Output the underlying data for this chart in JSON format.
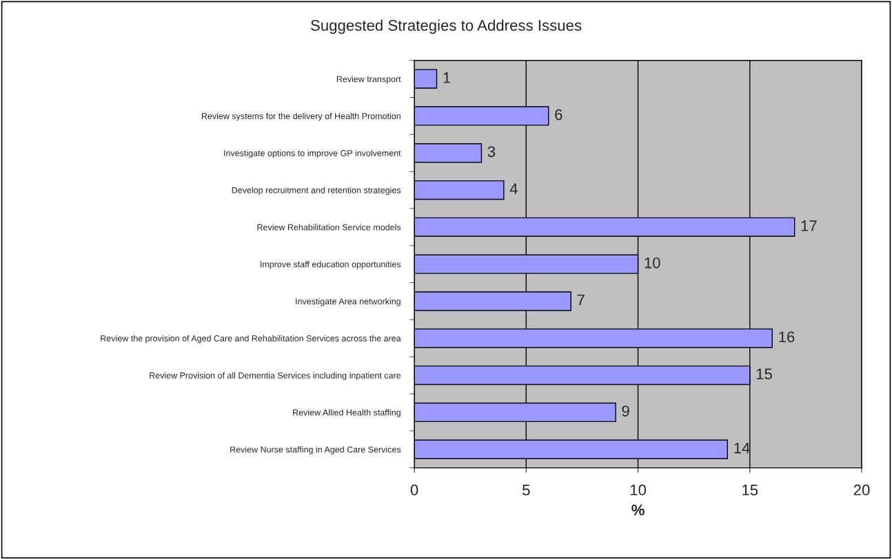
{
  "chart_data": {
    "type": "bar",
    "orientation": "horizontal",
    "title": "Suggested Strategies to Address Issues",
    "xlabel": "%",
    "categories": [
      "Review transport",
      "Review systems for the delivery of Health Promotion",
      "Investigate options to improve GP involvement",
      "Develop recruitment and retention strategies",
      "Review Rehabilitation Service models",
      "Improve staff education opportunities",
      "Investigate Area networking",
      "Review the provision of Aged Care and Rehabilitation Services across the area",
      "Review Provision of all Dementia Services including inpatient care",
      "Review Allied Health staffing",
      "Review Nurse staffing in Aged Care Services"
    ],
    "values": [
      1,
      6,
      3,
      4,
      17,
      10,
      7,
      16,
      15,
      9,
      14
    ],
    "color": "#9999ff",
    "xlim": [
      0,
      20
    ],
    "xticks": [
      0,
      5,
      10,
      15,
      20
    ],
    "grid": "x",
    "data_labels": true
  }
}
